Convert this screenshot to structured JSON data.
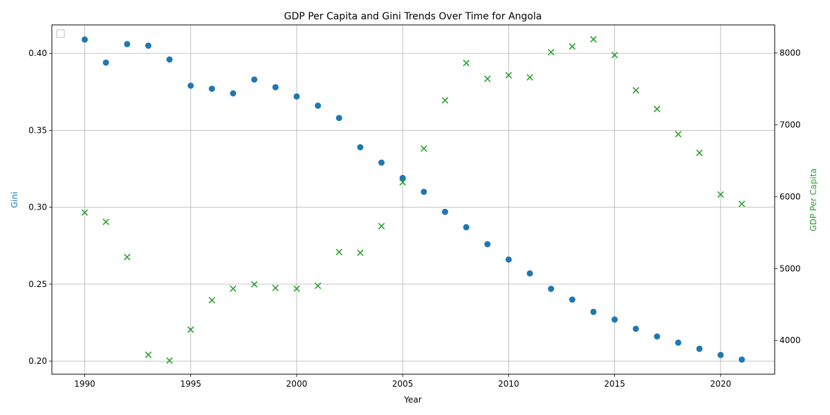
{
  "chart_data": {
    "type": "scatter",
    "title": "GDP Per Capita and Gini Trends Over Time for Angola",
    "xlabel": "Year",
    "ylabel_left": "Gini",
    "ylabel_right": "GDP Per Capita",
    "xlim": [
      1988.45,
      1992.55
    ],
    "ylim_left": [
      0.1915,
      0.4185
    ],
    "ylim_right": [
      3530,
      8390
    ],
    "x_ticks": [
      1990,
      1995,
      2000,
      2005,
      2010,
      2015,
      2020
    ],
    "y_left_ticks": [
      "0.20",
      "0.25",
      "0.30",
      "0.35",
      "0.40"
    ],
    "y_right_ticks": [
      4000,
      5000,
      6000,
      7000,
      8000
    ],
    "grid": true,
    "legend": "top-left (empty)",
    "colors": {
      "gini": "#1f77b4",
      "gdp": "#2ca02c"
    },
    "x": [
      1990,
      1991,
      1992,
      1993,
      1994,
      1995,
      1996,
      1997,
      1998,
      1999,
      2000,
      2001,
      2002,
      2003,
      2004,
      2005,
      2006,
      2007,
      2008,
      2009,
      2010,
      2011,
      2012,
      2013,
      2014,
      2015,
      2016,
      2017,
      2018,
      2019,
      2020,
      2021
    ],
    "series": [
      {
        "name": "Gini",
        "axis": "left",
        "marker": "circle",
        "values": [
          0.409,
          0.394,
          0.406,
          0.405,
          0.396,
          0.379,
          0.377,
          0.374,
          0.383,
          0.378,
          0.372,
          0.366,
          0.358,
          0.339,
          0.329,
          0.319,
          0.31,
          0.297,
          0.287,
          0.276,
          0.266,
          0.257,
          0.247,
          0.24,
          0.232,
          0.227,
          0.221,
          0.216,
          0.212,
          0.208,
          0.204,
          0.201
        ]
      },
      {
        "name": "GDP Per Capita",
        "axis": "right",
        "marker": "x",
        "values": [
          5780,
          5650,
          5160,
          3800,
          3720,
          4150,
          4560,
          4720,
          4780,
          4730,
          4720,
          4760,
          5230,
          5220,
          5590,
          6200,
          6670,
          7340,
          7860,
          7640,
          7690,
          7660,
          8010,
          8090,
          8190,
          7970,
          7480,
          7220,
          6870,
          6610,
          6030,
          5900
        ]
      }
    ]
  }
}
